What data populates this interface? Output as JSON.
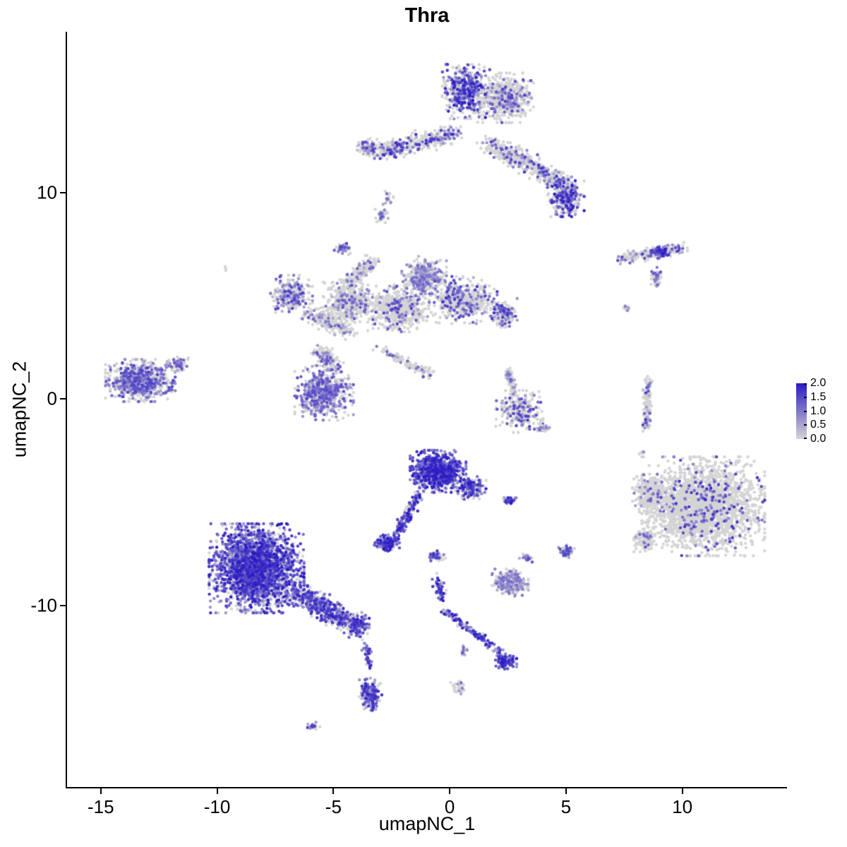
{
  "chart_data": {
    "type": "scatter",
    "title": "Thra",
    "xlabel": "umapNC_1",
    "ylabel": "umapNC_2",
    "xlim": [
      -16.45,
      14.5
    ],
    "ylim": [
      -18.8,
      17.8
    ],
    "grid": false,
    "legend_position": "right",
    "xticks": [
      {
        "v": -15,
        "label": "-15"
      },
      {
        "v": -10,
        "label": "-10"
      },
      {
        "v": -5,
        "label": "-5"
      },
      {
        "v": 0,
        "label": "0"
      },
      {
        "v": 5,
        "label": "5"
      },
      {
        "v": 10,
        "label": "10"
      }
    ],
    "yticks": [
      {
        "v": 10,
        "label": "10"
      },
      {
        "v": 0,
        "label": "0"
      },
      {
        "v": -10,
        "label": "-10"
      }
    ],
    "colorbar": {
      "vmax": 2,
      "low": "#D4D4D4",
      "high": "#2A1AC4",
      "ticks": [
        {
          "v": 2,
          "label": "2.0"
        },
        {
          "v": 1.5,
          "label": "1.5"
        },
        {
          "v": 1,
          "label": "1.0"
        },
        {
          "v": 0.5,
          "label": "0.5"
        },
        {
          "v": 0,
          "label": "0.0"
        }
      ]
    },
    "point_radius": 2.2,
    "clusters": [
      {
        "x": 2.4,
        "y": 14.6,
        "rx": 1.0,
        "ry": 1.0,
        "n": 650,
        "frac": 0.18,
        "vmin": 0.3,
        "vmax": 1.6
      },
      {
        "x": 0.7,
        "y": 14.9,
        "rx": 0.85,
        "ry": 1.1,
        "n": 500,
        "frac": 0.55,
        "vmin": 0.4,
        "vmax": 2.0
      },
      {
        "x": 0.3,
        "y": 12.9,
        "x2": -3.2,
        "y2": 11.9,
        "rx": 0.45,
        "ry": 0.4,
        "n": 380,
        "frac": 0.3,
        "vmin": 0.3,
        "vmax": 1.8
      },
      {
        "x": -3.5,
        "y": 12.2,
        "rx": 0.4,
        "ry": 0.35,
        "n": 90,
        "frac": 0.4,
        "vmin": 0.3,
        "vmax": 1.6
      },
      {
        "x": 1.6,
        "y": 12.4,
        "x2": 3.4,
        "y2": 11.4,
        "rx": 0.5,
        "ry": 0.45,
        "n": 260,
        "frac": 0.22,
        "vmin": 0.3,
        "vmax": 1.6
      },
      {
        "x": 3.4,
        "y": 11.4,
        "x2": 5.0,
        "y2": 10.3,
        "rx": 0.45,
        "ry": 0.4,
        "n": 240,
        "frac": 0.35,
        "vmin": 0.3,
        "vmax": 1.8
      },
      {
        "x": 5.0,
        "y": 9.8,
        "rx": 0.65,
        "ry": 0.8,
        "n": 320,
        "frac": 0.5,
        "vmin": 0.4,
        "vmax": 2.0
      },
      {
        "x": -2.9,
        "y": 8.9,
        "rx": 0.25,
        "ry": 0.5,
        "n": 45,
        "frac": 0.35,
        "vmin": 0.3,
        "vmax": 1.4
      },
      {
        "x": 7.3,
        "y": 6.8,
        "x2": 9.9,
        "y2": 7.3,
        "rx": 0.3,
        "ry": 0.25,
        "n": 210,
        "frac": 0.3,
        "vmin": 0.3,
        "vmax": 1.6
      },
      {
        "x": 9.1,
        "y": 7.1,
        "rx": 0.3,
        "ry": 0.25,
        "n": 70,
        "frac": 0.7,
        "vmin": 0.6,
        "vmax": 2.0
      },
      {
        "x": 8.9,
        "y": 5.9,
        "rx": 0.2,
        "ry": 0.4,
        "n": 60,
        "frac": 0.3,
        "vmin": 0.3,
        "vmax": 1.4
      },
      {
        "x": 7.6,
        "y": 4.4,
        "rx": 0.15,
        "ry": 0.15,
        "n": 12,
        "frac": 0.25,
        "vmin": 0.3,
        "vmax": 1.0
      },
      {
        "x": -6.8,
        "y": 5.1,
        "rx": 0.75,
        "ry": 0.75,
        "n": 280,
        "frac": 0.3,
        "vmin": 0.3,
        "vmax": 1.6
      },
      {
        "x": -6.0,
        "y": 4.2,
        "x2": -4.4,
        "y2": 3.3,
        "rx": 0.5,
        "ry": 0.4,
        "n": 240,
        "frac": 0.2,
        "vmin": 0.3,
        "vmax": 1.4
      },
      {
        "x": -4.3,
        "y": 4.7,
        "rx": 0.95,
        "ry": 0.9,
        "n": 480,
        "frac": 0.15,
        "vmin": 0.3,
        "vmax": 1.4
      },
      {
        "x": -4.4,
        "y": 5.6,
        "x2": -3.3,
        "y2": 6.7,
        "rx": 0.35,
        "ry": 0.3,
        "n": 140,
        "frac": 0.2,
        "vmin": 0.3,
        "vmax": 1.4
      },
      {
        "x": -4.6,
        "y": 7.3,
        "rx": 0.3,
        "ry": 0.25,
        "n": 50,
        "frac": 0.5,
        "vmin": 0.4,
        "vmax": 1.6
      },
      {
        "x": -2.2,
        "y": 4.4,
        "rx": 1.1,
        "ry": 0.95,
        "n": 520,
        "frac": 0.2,
        "vmin": 0.3,
        "vmax": 1.6
      },
      {
        "x": -1.1,
        "y": 5.9,
        "rx": 0.8,
        "ry": 0.85,
        "n": 380,
        "frac": 0.45,
        "vmin": 0.3,
        "vmax": 1.2
      },
      {
        "x": 0.6,
        "y": 4.8,
        "rx": 1.2,
        "ry": 0.95,
        "n": 520,
        "frac": 0.25,
        "vmin": 0.3,
        "vmax": 1.7
      },
      {
        "x": 2.3,
        "y": 4.2,
        "rx": 0.5,
        "ry": 0.6,
        "n": 140,
        "frac": 0.5,
        "vmin": 0.4,
        "vmax": 1.8
      },
      {
        "x": -3.2,
        "y": 2.5,
        "x2": -0.8,
        "y2": 1.2,
        "rx": 0.25,
        "ry": 0.2,
        "n": 110,
        "frac": 0.2,
        "vmin": 0.3,
        "vmax": 1.4
      },
      {
        "x": -5.6,
        "y": 2.4,
        "x2": -4.9,
        "y2": 1.5,
        "rx": 0.4,
        "ry": 0.35,
        "n": 160,
        "frac": 0.3,
        "vmin": 0.3,
        "vmax": 1.5
      },
      {
        "x": -5.4,
        "y": 0.3,
        "rx": 1.05,
        "ry": 1.1,
        "n": 650,
        "frac": 0.5,
        "vmin": 0.3,
        "vmax": 1.5
      },
      {
        "x": -13.3,
        "y": 0.9,
        "rx": 1.25,
        "ry": 0.85,
        "n": 750,
        "frac": 0.5,
        "vmin": 0.3,
        "vmax": 1.6
      },
      {
        "x": -11.7,
        "y": 1.7,
        "rx": 0.4,
        "ry": 0.3,
        "n": 80,
        "frac": 0.4,
        "vmin": 0.3,
        "vmax": 1.5
      },
      {
        "x": 3.0,
        "y": -0.6,
        "rx": 0.85,
        "ry": 0.85,
        "n": 260,
        "frac": 0.3,
        "vmin": 0.3,
        "vmax": 1.7
      },
      {
        "x": 2.5,
        "y": 1.4,
        "x2": 2.8,
        "y2": 0.2,
        "rx": 0.2,
        "ry": 0.2,
        "n": 70,
        "frac": 0.25,
        "vmin": 0.3,
        "vmax": 1.4
      },
      {
        "x": 4.0,
        "y": -1.4,
        "rx": 0.3,
        "ry": 0.2,
        "n": 30,
        "frac": 0.3,
        "vmin": 0.3,
        "vmax": 1.4
      },
      {
        "x": 8.55,
        "y": 1.0,
        "x2": 8.45,
        "y2": -1.4,
        "rx": 0.18,
        "ry": 0.2,
        "n": 130,
        "frac": 0.18,
        "vmin": 0.3,
        "vmax": 1.8
      },
      {
        "x": 8.3,
        "y": -2.6,
        "rx": 0.12,
        "ry": 0.12,
        "n": 6,
        "frac": 0.3,
        "vmin": 0.3,
        "vmax": 1.0
      },
      {
        "x": 10.9,
        "y": -5.2,
        "rx": 2.2,
        "ry": 2.0,
        "n": 2300,
        "frac": 0.08,
        "vmin": 0.6,
        "vmax": 1.8
      },
      {
        "x": 8.7,
        "y": -4.6,
        "rx": 0.7,
        "ry": 0.8,
        "n": 300,
        "frac": 0.1,
        "vmin": 0.5,
        "vmax": 1.6
      },
      {
        "x": 8.4,
        "y": -6.8,
        "rx": 0.4,
        "ry": 0.5,
        "n": 120,
        "frac": 0.12,
        "vmin": 0.4,
        "vmax": 1.4
      },
      {
        "x": -0.5,
        "y": -3.5,
        "rx": 1.0,
        "ry": 0.85,
        "n": 750,
        "frac": 0.85,
        "vmin": 0.7,
        "vmax": 2.0
      },
      {
        "x": 0.9,
        "y": -4.3,
        "rx": 0.55,
        "ry": 0.5,
        "n": 160,
        "frac": 0.7,
        "vmin": 0.5,
        "vmax": 2.0
      },
      {
        "x": -1.3,
        "y": -4.7,
        "x2": -2.4,
        "y2": -6.7,
        "rx": 0.22,
        "ry": 0.2,
        "n": 170,
        "frac": 0.75,
        "vmin": 0.5,
        "vmax": 2.0
      },
      {
        "x": -2.7,
        "y": -7.0,
        "rx": 0.45,
        "ry": 0.35,
        "n": 160,
        "frac": 0.8,
        "vmin": 0.5,
        "vmax": 2.0
      },
      {
        "x": -0.6,
        "y": -7.6,
        "rx": 0.35,
        "ry": 0.2,
        "n": 55,
        "frac": 0.6,
        "vmin": 0.4,
        "vmax": 1.8
      },
      {
        "x": 2.5,
        "y": -4.9,
        "rx": 0.3,
        "ry": 0.2,
        "n": 35,
        "frac": 0.6,
        "vmin": 0.4,
        "vmax": 2.0
      },
      {
        "x": -8.3,
        "y": -8.2,
        "rx": 1.7,
        "ry": 1.8,
        "n": 2600,
        "frac": 0.75,
        "vmin": 0.35,
        "vmax": 2.0
      },
      {
        "x": -6.7,
        "y": -9.3,
        "x2": -4.4,
        "y2": -10.8,
        "rx": 0.55,
        "ry": 0.5,
        "n": 550,
        "frac": 0.65,
        "vmin": 0.35,
        "vmax": 1.9
      },
      {
        "x": -4.0,
        "y": -11.0,
        "rx": 0.45,
        "ry": 0.55,
        "n": 160,
        "frac": 0.7,
        "vmin": 0.4,
        "vmax": 1.9
      },
      {
        "x": -3.6,
        "y": -11.9,
        "x2": -3.4,
        "y2": -13.1,
        "rx": 0.18,
        "ry": 0.2,
        "n": 50,
        "frac": 0.7,
        "vmin": 0.4,
        "vmax": 1.8
      },
      {
        "x": -3.4,
        "y": -14.3,
        "rx": 0.4,
        "ry": 0.65,
        "n": 190,
        "frac": 0.75,
        "vmin": 0.4,
        "vmax": 1.9
      },
      {
        "x": -5.9,
        "y": -15.9,
        "rx": 0.3,
        "ry": 0.2,
        "n": 28,
        "frac": 0.6,
        "vmin": 0.4,
        "vmax": 1.6
      },
      {
        "x": -0.6,
        "y": -8.6,
        "x2": -0.3,
        "y2": -9.7,
        "rx": 0.2,
        "ry": 0.2,
        "n": 60,
        "frac": 0.7,
        "vmin": 0.4,
        "vmax": 1.9
      },
      {
        "x": -0.2,
        "y": -10.3,
        "x2": 2.2,
        "y2": -12.3,
        "rx": 0.2,
        "ry": 0.18,
        "n": 140,
        "frac": 0.75,
        "vmin": 0.4,
        "vmax": 2.0
      },
      {
        "x": 2.4,
        "y": -12.7,
        "rx": 0.4,
        "ry": 0.35,
        "n": 110,
        "frac": 0.8,
        "vmin": 0.5,
        "vmax": 2.0
      },
      {
        "x": 2.6,
        "y": -8.9,
        "rx": 0.65,
        "ry": 0.55,
        "n": 260,
        "frac": 0.55,
        "vmin": 0.3,
        "vmax": 1.2
      },
      {
        "x": 3.3,
        "y": -7.7,
        "rx": 0.25,
        "ry": 0.2,
        "n": 30,
        "frac": 0.5,
        "vmin": 0.3,
        "vmax": 1.5
      },
      {
        "x": 5.0,
        "y": -7.4,
        "rx": 0.3,
        "ry": 0.28,
        "n": 60,
        "frac": 0.5,
        "vmin": 0.3,
        "vmax": 1.7
      },
      {
        "x": 0.4,
        "y": -14.0,
        "rx": 0.3,
        "ry": 0.3,
        "n": 35,
        "frac": 0.2,
        "vmin": 0.3,
        "vmax": 1.2
      },
      {
        "x": 0.6,
        "y": -12.2,
        "rx": 0.15,
        "ry": 0.25,
        "n": 15,
        "frac": 0.5,
        "vmin": 0.3,
        "vmax": 1.6
      },
      {
        "x": -9.6,
        "y": 6.3,
        "rx": 0.1,
        "ry": 0.1,
        "n": 3,
        "frac": 0.1,
        "vmin": 0.3,
        "vmax": 0.8
      },
      {
        "x": -2.6,
        "y": 9.7,
        "rx": 0.15,
        "ry": 0.3,
        "n": 15,
        "frac": 0.3,
        "vmin": 0.3,
        "vmax": 1.2
      }
    ]
  }
}
